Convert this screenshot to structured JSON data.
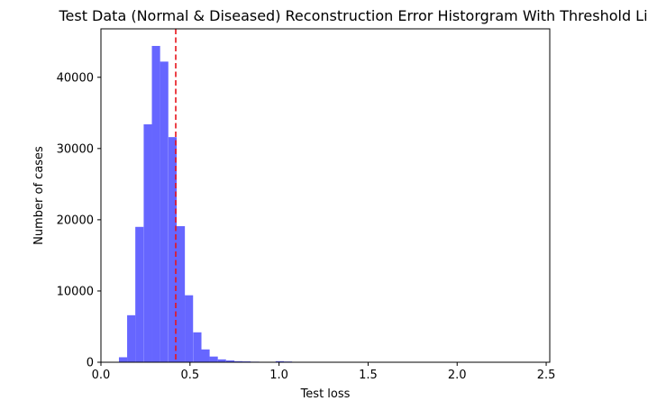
{
  "chart_data": {
    "type": "bar",
    "title": "Test Data (Normal & Diseased) Reconstruction Error Historgram With Threshold Line",
    "xlabel": "Test loss",
    "ylabel": "Number of cases",
    "xlim": [
      0.0,
      2.52
    ],
    "ylim": [
      0,
      46800
    ],
    "xticks": [
      0.0,
      0.5,
      1.0,
      1.5,
      2.0,
      2.5
    ],
    "xtick_labels": [
      "0.0",
      "0.5",
      "1.0",
      "1.5",
      "2.0",
      "2.5"
    ],
    "yticks": [
      0,
      10000,
      20000,
      30000,
      40000
    ],
    "ytick_labels": [
      "0",
      "10000",
      "20000",
      "30000",
      "40000"
    ],
    "bin_width": 0.0463,
    "bins_start": [
      0.101,
      0.147,
      0.193,
      0.24,
      0.286,
      0.332,
      0.379,
      0.425,
      0.471,
      0.518,
      0.564,
      0.61,
      0.656,
      0.703,
      0.749,
      0.795,
      0.842,
      0.888,
      0.934,
      0.981,
      1.027,
      1.073
    ],
    "values": [
      700,
      6600,
      19000,
      33400,
      44400,
      42200,
      31600,
      19100,
      9400,
      4200,
      1800,
      800,
      400,
      250,
      150,
      120,
      80,
      60,
      60,
      150,
      100,
      30
    ],
    "bar_color": "#6666ff",
    "threshold": 0.42,
    "threshold_color": "#e8141b",
    "grid": false
  }
}
